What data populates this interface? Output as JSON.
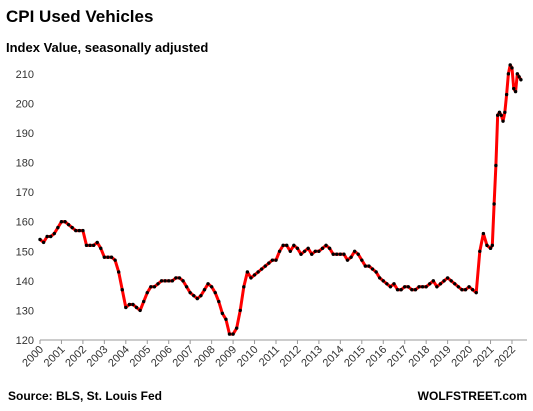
{
  "chart_data": {
    "type": "line",
    "title": "CPI Used Vehicles",
    "subtitle": "Index Value, seasonally adjusted",
    "source": "Source: BLS, St. Louis Fed",
    "brand": "WOLFSTREET.com",
    "x": [
      2000,
      2000.167,
      2000.333,
      2000.5,
      2000.667,
      2000.833,
      2001,
      2001.167,
      2001.333,
      2001.5,
      2001.667,
      2001.833,
      2002,
      2002.167,
      2002.333,
      2002.5,
      2002.667,
      2002.833,
      2003,
      2003.167,
      2003.333,
      2003.5,
      2003.667,
      2003.833,
      2004,
      2004.167,
      2004.333,
      2004.5,
      2004.667,
      2004.833,
      2005,
      2005.167,
      2005.333,
      2005.5,
      2005.667,
      2005.833,
      2006,
      2006.167,
      2006.333,
      2006.5,
      2006.667,
      2006.833,
      2007,
      2007.167,
      2007.333,
      2007.5,
      2007.667,
      2007.833,
      2008,
      2008.167,
      2008.333,
      2008.5,
      2008.667,
      2008.833,
      2009,
      2009.167,
      2009.333,
      2009.5,
      2009.667,
      2009.833,
      2010,
      2010.167,
      2010.333,
      2010.5,
      2010.667,
      2010.833,
      2011,
      2011.167,
      2011.333,
      2011.5,
      2011.667,
      2011.833,
      2012,
      2012.167,
      2012.333,
      2012.5,
      2012.667,
      2012.833,
      2013,
      2013.167,
      2013.333,
      2013.5,
      2013.667,
      2013.833,
      2014,
      2014.167,
      2014.333,
      2014.5,
      2014.667,
      2014.833,
      2015,
      2015.167,
      2015.333,
      2015.5,
      2015.667,
      2015.833,
      2016,
      2016.167,
      2016.333,
      2016.5,
      2016.667,
      2016.833,
      2017,
      2017.167,
      2017.333,
      2017.5,
      2017.667,
      2017.833,
      2018,
      2018.167,
      2018.333,
      2018.5,
      2018.667,
      2018.833,
      2019,
      2019.167,
      2019.333,
      2019.5,
      2019.667,
      2019.833,
      2020,
      2020.167,
      2020.333,
      2020.5,
      2020.667,
      2020.833,
      2021,
      2021.083,
      2021.167,
      2021.25,
      2021.333,
      2021.417,
      2021.5,
      2021.583,
      2021.667,
      2021.75,
      2021.833,
      2021.917,
      2022,
      2022.083,
      2022.167,
      2022.25,
      2022.333,
      2022.417
    ],
    "series": [
      {
        "name": "CPI Used Vehicles",
        "color": "#ff0000",
        "marker_color": "#000000",
        "values": [
          154,
          153,
          155,
          155,
          156,
          158,
          160,
          160,
          159,
          158,
          157,
          157,
          157,
          152,
          152,
          152,
          153,
          151,
          148,
          148,
          148,
          147,
          143,
          137,
          131,
          132,
          132,
          131,
          130,
          133,
          136,
          138,
          138,
          139,
          140,
          140,
          140,
          140,
          141,
          141,
          140,
          138,
          136,
          135,
          134,
          135,
          137,
          139,
          138,
          136,
          133,
          129,
          127,
          122,
          122,
          124,
          130,
          138,
          143,
          141,
          142,
          143,
          144,
          145,
          146,
          147,
          147,
          150,
          152,
          152,
          150,
          152,
          151,
          149,
          150,
          151,
          149,
          150,
          150,
          151,
          152,
          151,
          149,
          149,
          149,
          149,
          147,
          148,
          150,
          149,
          147,
          145,
          145,
          144,
          143,
          141,
          140,
          139,
          138,
          139,
          137,
          137,
          138,
          138,
          137,
          137,
          138,
          138,
          138,
          139,
          140,
          138,
          139,
          140,
          141,
          140,
          139,
          138,
          137,
          137,
          138,
          137,
          136,
          150,
          156,
          152,
          151,
          152,
          166,
          179,
          196,
          197,
          196,
          194,
          197,
          203,
          210,
          213,
          212,
          205,
          204,
          210,
          209,
          208
        ]
      }
    ],
    "xlim": [
      2000,
      2022.7
    ],
    "xticks": [
      2000,
      2001,
      2002,
      2003,
      2004,
      2005,
      2006,
      2007,
      2008,
      2009,
      2010,
      2011,
      2012,
      2013,
      2014,
      2015,
      2016,
      2017,
      2018,
      2019,
      2020,
      2021,
      2022
    ],
    "ylim": [
      120,
      214
    ],
    "yticks": [
      120,
      130,
      140,
      150,
      160,
      170,
      180,
      190,
      200,
      210
    ],
    "grid": false
  }
}
